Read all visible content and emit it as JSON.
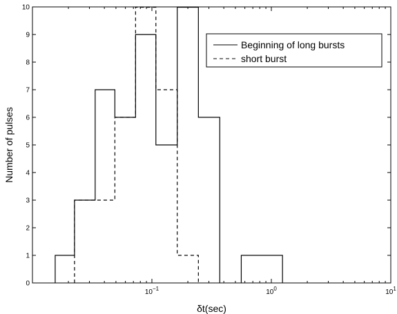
{
  "chart_data": {
    "type": "step-histogram",
    "xlabel": "δt(sec)",
    "ylabel": "Number of pulses",
    "xscale": "log",
    "xlim": [
      0.01,
      10
    ],
    "ylim": [
      0,
      10
    ],
    "yticks": [
      0,
      1,
      2,
      3,
      4,
      5,
      6,
      7,
      8,
      9,
      10
    ],
    "xticks": [
      {
        "value": 0.1,
        "base": "10",
        "exp": "−1"
      },
      {
        "value": 1,
        "base": "10",
        "exp": "0"
      },
      {
        "value": 10,
        "base": "10",
        "exp": "1"
      }
    ],
    "legend": {
      "position": "top-right"
    },
    "series": [
      {
        "name": "Beginning of long bursts",
        "style": "solid",
        "bins": [
          {
            "x0": 0.0155,
            "x1": 0.0225,
            "count": 1
          },
          {
            "x0": 0.0225,
            "x1": 0.0335,
            "count": 3
          },
          {
            "x0": 0.0335,
            "x1": 0.049,
            "count": 7
          },
          {
            "x0": 0.049,
            "x1": 0.073,
            "count": 6
          },
          {
            "x0": 0.073,
            "x1": 0.108,
            "count": 9
          },
          {
            "x0": 0.108,
            "x1": 0.163,
            "count": 5
          },
          {
            "x0": 0.163,
            "x1": 0.245,
            "count": 10
          },
          {
            "x0": 0.245,
            "x1": 0.37,
            "count": 6
          },
          {
            "x0": 0.56,
            "x1": 1.24,
            "count": 1
          }
        ]
      },
      {
        "name": "short burst",
        "style": "dashed",
        "bins": [
          {
            "x0": 0.0225,
            "x1": 0.049,
            "count": 3
          },
          {
            "x0": 0.049,
            "x1": 0.073,
            "count": 6
          },
          {
            "x0": 0.073,
            "x1": 0.108,
            "count": 10
          },
          {
            "x0": 0.108,
            "x1": 0.163,
            "count": 7
          },
          {
            "x0": 0.163,
            "x1": 0.245,
            "count": 1
          }
        ]
      }
    ]
  }
}
